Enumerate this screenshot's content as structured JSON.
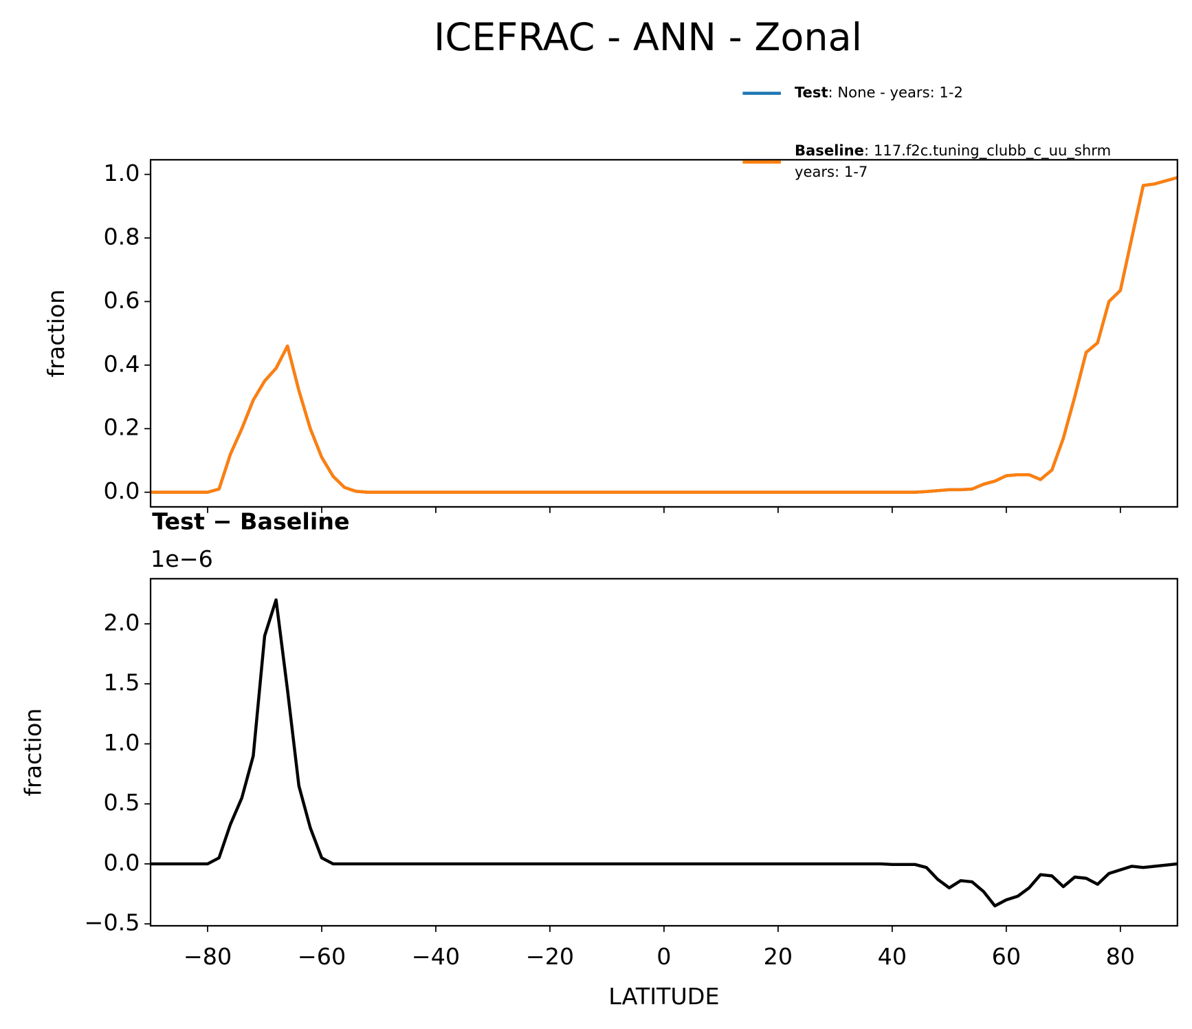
{
  "title": "ICEFRAC - ANN - Zonal",
  "chart_data": [
    {
      "type": "line",
      "ylabel": "fraction",
      "x": [
        -90,
        -88,
        -86,
        -84,
        -82,
        -80,
        -78,
        -76,
        -74,
        -72,
        -70,
        -68,
        -66,
        -64,
        -62,
        -60,
        -58,
        -56,
        -54,
        -52,
        -50,
        -48,
        -46,
        -44,
        -42,
        -40,
        -38,
        -36,
        -34,
        -32,
        -30,
        -28,
        -26,
        -24,
        -22,
        -20,
        -18,
        -16,
        -14,
        -12,
        -10,
        -8,
        -6,
        -4,
        -2,
        0,
        2,
        4,
        6,
        8,
        10,
        12,
        14,
        16,
        18,
        20,
        22,
        24,
        26,
        28,
        30,
        32,
        34,
        36,
        38,
        40,
        42,
        44,
        46,
        48,
        50,
        52,
        54,
        56,
        58,
        60,
        62,
        64,
        66,
        68,
        70,
        72,
        74,
        76,
        78,
        80,
        82,
        84,
        86,
        88,
        90
      ],
      "series": [
        {
          "name": "Test",
          "description": ": None - years: 1-2",
          "color": "#1f77b4",
          "values": [
            0,
            0,
            0,
            0,
            0,
            0,
            0.01,
            0.12,
            0.2,
            0.29,
            0.35,
            0.39,
            0.46,
            0.32,
            0.2,
            0.11,
            0.05,
            0.015,
            0.003,
            0,
            0,
            0,
            0,
            0,
            0,
            0,
            0,
            0,
            0,
            0,
            0,
            0,
            0,
            0,
            0,
            0,
            0,
            0,
            0,
            0,
            0,
            0,
            0,
            0,
            0,
            0,
            0,
            0,
            0,
            0,
            0,
            0,
            0,
            0,
            0,
            0,
            0,
            0,
            0,
            0,
            0,
            0,
            0,
            0,
            0,
            0,
            0,
            0,
            0.002,
            0.005,
            0.008,
            0.008,
            0.01,
            0.025,
            0.035,
            0.052,
            0.055,
            0.055,
            0.04,
            0.07,
            0.17,
            0.3,
            0.44,
            0.47,
            0.6,
            0.635,
            0.8,
            0.965,
            0.97,
            0.98,
            0.99
          ]
        },
        {
          "name": "Baseline",
          "description": [
            ": 117.f2c.tuning_clubb_c_uu_shrm",
            "years: 1-7"
          ],
          "color": "#ff7f0e",
          "values": [
            0,
            0,
            0,
            0,
            0,
            0,
            0.01,
            0.12,
            0.2,
            0.29,
            0.35,
            0.39,
            0.46,
            0.32,
            0.2,
            0.11,
            0.05,
            0.015,
            0.003,
            0,
            0,
            0,
            0,
            0,
            0,
            0,
            0,
            0,
            0,
            0,
            0,
            0,
            0,
            0,
            0,
            0,
            0,
            0,
            0,
            0,
            0,
            0,
            0,
            0,
            0,
            0,
            0,
            0,
            0,
            0,
            0,
            0,
            0,
            0,
            0,
            0,
            0,
            0,
            0,
            0,
            0,
            0,
            0,
            0,
            0,
            0,
            0,
            0,
            0.002,
            0.005,
            0.008,
            0.008,
            0.01,
            0.025,
            0.035,
            0.052,
            0.055,
            0.055,
            0.04,
            0.07,
            0.17,
            0.3,
            0.44,
            0.47,
            0.6,
            0.635,
            0.8,
            0.965,
            0.97,
            0.98,
            0.99
          ]
        }
      ],
      "xlim": [
        -90,
        90
      ],
      "ylim": [
        -0.046,
        1.046
      ],
      "yticks": [
        {
          "value": 0,
          "label": "0.0"
        },
        {
          "value": 0.2,
          "label": "0.2"
        },
        {
          "value": 0.4,
          "label": "0.4"
        },
        {
          "value": 0.6,
          "label": "0.6"
        },
        {
          "value": 0.8,
          "label": "0.8"
        },
        {
          "value": 1,
          "label": "1.0"
        }
      ],
      "legend": "upper right"
    },
    {
      "type": "line",
      "title": "Test − Baseline",
      "offset_label": "1e−6",
      "ylabel": "fraction",
      "xlabel": "LATITUDE",
      "x": [
        -90,
        -88,
        -86,
        -84,
        -82,
        -80,
        -78,
        -76,
        -74,
        -72,
        -70,
        -68,
        -66,
        -64,
        -62,
        -60,
        -58,
        -56,
        -54,
        -52,
        -50,
        -48,
        -46,
        -44,
        -42,
        -40,
        -38,
        -36,
        -34,
        -32,
        -30,
        -28,
        -26,
        -24,
        -22,
        -20,
        -18,
        -16,
        -14,
        -12,
        -10,
        -8,
        -6,
        -4,
        -2,
        0,
        2,
        4,
        6,
        8,
        10,
        12,
        14,
        16,
        18,
        20,
        22,
        24,
        26,
        28,
        30,
        32,
        34,
        36,
        38,
        40,
        42,
        44,
        46,
        48,
        50,
        52,
        54,
        56,
        58,
        60,
        62,
        64,
        66,
        68,
        70,
        72,
        74,
        76,
        78,
        80,
        82,
        84,
        86,
        88,
        90
      ],
      "series": [
        {
          "color": "#000000",
          "values": [
            0,
            0,
            0,
            0,
            0,
            0,
            0.05,
            0.33,
            0.55,
            0.9,
            1.9,
            2.2,
            1.45,
            0.65,
            0.3,
            0.05,
            0,
            0,
            0,
            0,
            0,
            0,
            0,
            0,
            0,
            0,
            0,
            0,
            0,
            0,
            0,
            0,
            0,
            0,
            0,
            0,
            0,
            0,
            0,
            0,
            0,
            0,
            0,
            0,
            0,
            0,
            0,
            0,
            0,
            0,
            0,
            0,
            0,
            0,
            0,
            0,
            0,
            0,
            0,
            0,
            0,
            0,
            0,
            0,
            0,
            -0.005,
            -0.005,
            -0.005,
            -0.03,
            -0.13,
            -0.2,
            -0.14,
            -0.15,
            -0.23,
            -0.35,
            -0.3,
            -0.27,
            -0.2,
            -0.09,
            -0.1,
            -0.19,
            -0.11,
            -0.12,
            -0.17,
            -0.08,
            -0.05,
            -0.02,
            -0.03,
            -0.02,
            -0.01,
            0
          ]
        }
      ],
      "xlim": [
        -90,
        90
      ],
      "ylim": [
        -0.516,
        2.376
      ],
      "xticks": [
        {
          "value": -80,
          "label": "−80"
        },
        {
          "value": -60,
          "label": "−60"
        },
        {
          "value": -40,
          "label": "−40"
        },
        {
          "value": -20,
          "label": "−20"
        },
        0,
        20,
        40,
        60,
        80
      ],
      "yticks": [
        {
          "value": -0.5,
          "label": "−0.5"
        },
        {
          "value": 0,
          "label": "0.0"
        },
        {
          "value": 0.5,
          "label": "0.5"
        },
        {
          "value": 1,
          "label": "1.0"
        },
        {
          "value": 1.5,
          "label": "1.5"
        },
        {
          "value": 2,
          "label": "2.0"
        }
      ]
    }
  ]
}
